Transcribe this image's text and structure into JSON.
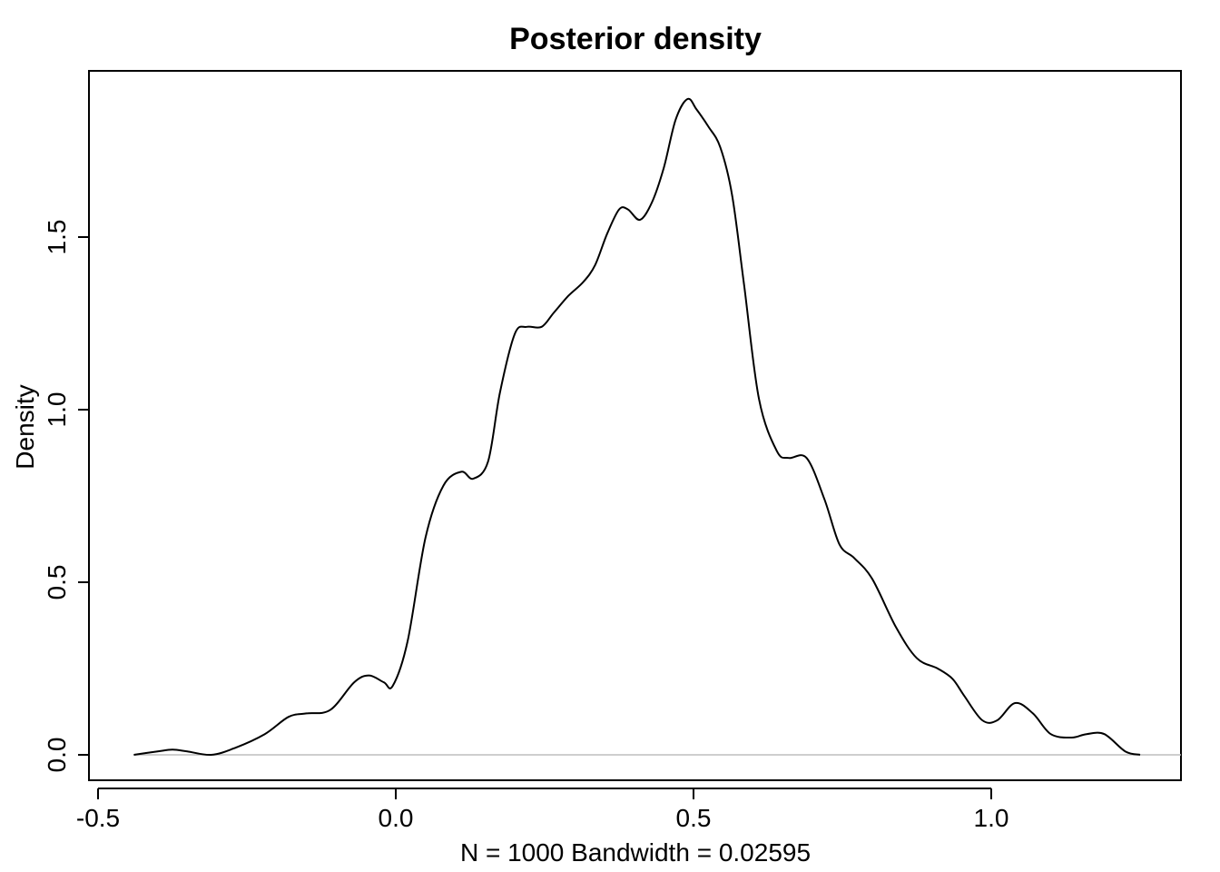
{
  "chart_data": {
    "type": "line",
    "title": "Posterior density",
    "xlabel": "N = 1000   Bandwidth = 0.02595",
    "ylabel": "Density",
    "xlim": [
      -0.5,
      1.3
    ],
    "ylim": [
      0,
      1.9
    ],
    "x_ticks": [
      -0.5,
      0.0,
      0.5,
      1.0
    ],
    "x_tick_labels": [
      "-0.5",
      "0.0",
      "0.5",
      "1.0"
    ],
    "y_ticks": [
      0.0,
      0.5,
      1.0,
      1.5
    ],
    "y_tick_labels": [
      "0.0",
      "0.5",
      "1.0",
      "1.5"
    ],
    "grid": false,
    "baseline": 0,
    "series": [
      {
        "x": [
          -0.44,
          -0.4,
          -0.375,
          -0.35,
          -0.31,
          -0.27,
          -0.22,
          -0.18,
          -0.15,
          -0.11,
          -0.07,
          -0.045,
          -0.02,
          -0.005,
          0.02,
          0.05,
          0.08,
          0.11,
          0.13,
          0.155,
          0.175,
          0.2,
          0.22,
          0.245,
          0.265,
          0.29,
          0.315,
          0.335,
          0.355,
          0.375,
          0.39,
          0.41,
          0.43,
          0.45,
          0.47,
          0.49,
          0.505,
          0.525,
          0.545,
          0.565,
          0.585,
          0.61,
          0.64,
          0.66,
          0.69,
          0.72,
          0.745,
          0.77,
          0.8,
          0.84,
          0.875,
          0.91,
          0.935,
          0.955,
          0.985,
          1.01,
          1.04,
          1.07,
          1.1,
          1.135,
          1.16,
          1.19,
          1.225,
          1.25
        ],
        "y": [
          0.0,
          0.01,
          0.015,
          0.01,
          0.0,
          0.02,
          0.06,
          0.11,
          0.12,
          0.13,
          0.21,
          0.23,
          0.21,
          0.2,
          0.33,
          0.63,
          0.78,
          0.82,
          0.8,
          0.85,
          1.05,
          1.22,
          1.24,
          1.24,
          1.28,
          1.33,
          1.37,
          1.42,
          1.51,
          1.58,
          1.58,
          1.55,
          1.6,
          1.7,
          1.84,
          1.9,
          1.87,
          1.82,
          1.76,
          1.62,
          1.36,
          1.03,
          0.88,
          0.86,
          0.86,
          0.74,
          0.61,
          0.57,
          0.51,
          0.37,
          0.28,
          0.25,
          0.22,
          0.17,
          0.1,
          0.1,
          0.15,
          0.12,
          0.06,
          0.05,
          0.06,
          0.06,
          0.01,
          0.0
        ]
      }
    ]
  }
}
